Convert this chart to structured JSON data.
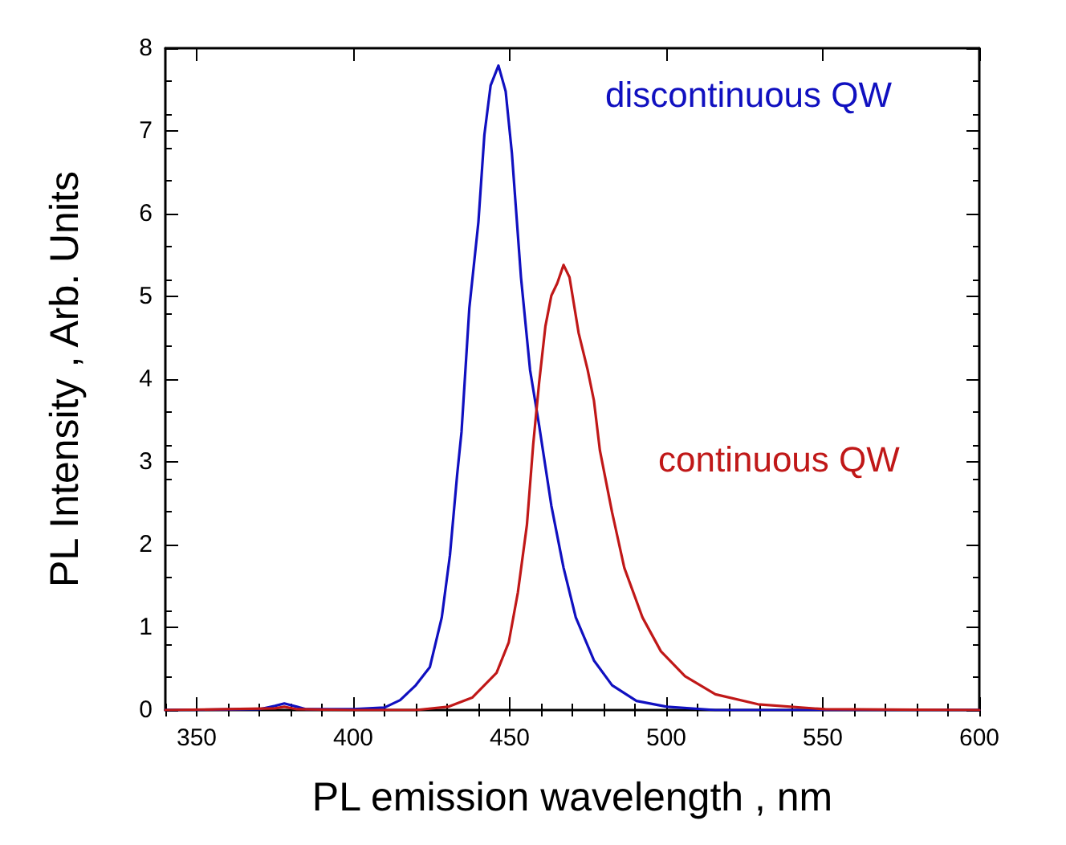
{
  "chart_data": {
    "type": "line",
    "xlabel": "PL emission wavelength , nm",
    "ylabel": "PL Intensity , Arb. Units",
    "xlim": [
      340,
      600
    ],
    "xticks": [
      350,
      400,
      450,
      500,
      550,
      600
    ],
    "ylim": [
      0,
      8
    ],
    "yticks": [
      0,
      1,
      2,
      3,
      4,
      5,
      6,
      7,
      8
    ],
    "grid": false,
    "marker": "none",
    "line_style": "solid",
    "series": [
      {
        "name": "discontinuous QW",
        "color": "#1010c0",
        "x": [
          340,
          370,
          375,
          378,
          382,
          385,
          400,
          410,
          415,
          420,
          424.5,
          428.3,
          430.9,
          433.2,
          434.6,
          437.1,
          440,
          441.9,
          443.9,
          446.4,
          448.7,
          450.7,
          453.6,
          456.5,
          459.4,
          463.3,
          467.2,
          471.1,
          476.9,
          482.7,
          490.5,
          500.2,
          515.7,
          600
        ],
        "values": [
          0,
          0.01,
          0.05,
          0.08,
          0.04,
          0.01,
          0.01,
          0.03,
          0.12,
          0.3,
          0.52,
          1.12,
          1.87,
          2.84,
          3.36,
          4.86,
          5.9,
          6.95,
          7.55,
          7.79,
          7.48,
          6.73,
          5.23,
          4.11,
          3.44,
          2.47,
          1.72,
          1.12,
          0.6,
          0.3,
          0.11,
          0.04,
          0,
          0
        ]
      },
      {
        "name": "continuous QW",
        "color": "#c01818",
        "x": [
          340,
          375,
          378,
          382,
          400,
          420,
          430.3,
          438,
          445.8,
          449.7,
          452.6,
          455.5,
          457.5,
          459.4,
          461.4,
          463.3,
          465.2,
          467.2,
          469.1,
          472,
          474.9,
          476.9,
          478.8,
          482.7,
          486.6,
          492.4,
          498.3,
          506,
          515.7,
          529.3,
          550.7,
          600
        ],
        "values": [
          0,
          0.02,
          0.04,
          0.01,
          0,
          0,
          0.04,
          0.15,
          0.45,
          0.82,
          1.42,
          2.24,
          3.21,
          3.96,
          4.64,
          5.01,
          5.16,
          5.38,
          5.23,
          4.56,
          4.11,
          3.74,
          3.14,
          2.39,
          1.72,
          1.12,
          0.71,
          0.41,
          0.19,
          0.07,
          0.01,
          0
        ]
      }
    ]
  }
}
